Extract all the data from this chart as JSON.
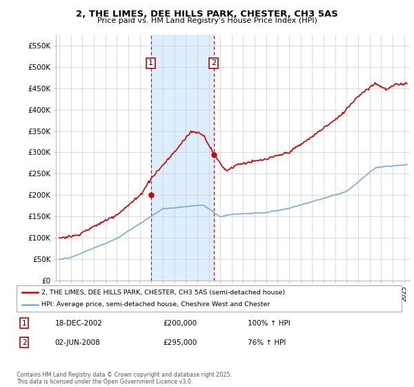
{
  "title": "2, THE LIMES, DEE HILLS PARK, CHESTER, CH3 5AS",
  "subtitle": "Price paid vs. HM Land Registry's House Price Index (HPI)",
  "ylim": [
    0,
    575000
  ],
  "yticks": [
    0,
    50000,
    100000,
    150000,
    200000,
    250000,
    300000,
    350000,
    400000,
    450000,
    500000,
    550000
  ],
  "ytick_labels": [
    "£0",
    "£50K",
    "£100K",
    "£150K",
    "£200K",
    "£250K",
    "£300K",
    "£350K",
    "£400K",
    "£450K",
    "£500K",
    "£550K"
  ],
  "xlim_start": 1994.7,
  "xlim_end": 2025.5,
  "sale1_x": 2002.96,
  "sale1_y": 200000,
  "sale1_label": "1",
  "sale1_date": "18-DEC-2002",
  "sale1_price": "£200,000",
  "sale1_hpi": "100% ↑ HPI",
  "sale2_x": 2008.42,
  "sale2_y": 295000,
  "sale2_label": "2",
  "sale2_date": "02-JUN-2008",
  "sale2_price": "£295,000",
  "sale2_hpi": "76% ↑ HPI",
  "red_color": "#cc0000",
  "blue_color": "#7aabda",
  "shade_color": "#ddeeff",
  "legend1": "2, THE LIMES, DEE HILLS PARK, CHESTER, CH3 5AS (semi-detached house)",
  "legend2": "HPI: Average price, semi-detached house, Cheshire West and Chester",
  "footnote": "Contains HM Land Registry data © Crown copyright and database right 2025.\nThis data is licensed under the Open Government Licence v3.0."
}
